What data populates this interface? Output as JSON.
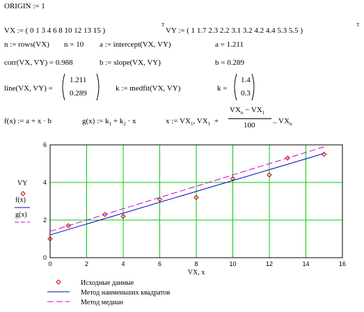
{
  "worksheet": {
    "origin": "ORIGIN := 1",
    "vx_def": "VX := ( 0  1  3  4  6  8  10  12  13  15 )",
    "vx_sup": "T",
    "vy_def": "VY := ( 1  1.7  2.3  2.2  3.1  3.2  4.2  4.4  5.3  5.5 )",
    "vy_sup": "T",
    "n_def": "n := rows(VX)",
    "n_val": "n = 10",
    "a_def": "a := intercept(VX, VY)",
    "a_val": "a = 1.211",
    "corr": "corr(VX, VY) = 0.988",
    "b_def": "b := slope(VX, VY)",
    "b_val": "b = 0.289",
    "line_lhs": "line(VX, VY) =",
    "line_v1": "1.211",
    "line_v2": "0.289",
    "k_def": "k := medfit(VX, VY)",
    "k_lhs": "k =",
    "k_v1": "1.4",
    "k_v2": "0.3",
    "fx_def": "f(x) := a + x · b",
    "gx_pre": "g(x) := k",
    "gx_s1": "1",
    "gx_mid": " + k",
    "gx_s2": "2",
    "gx_post": " · x",
    "x_pre": "x := VX",
    "x_s1": "1",
    "x_mid": ", VX",
    "x_s2": "1",
    "x_plus": "+",
    "frac_num_a": "VX",
    "frac_num_as": "n",
    "frac_num_b": " − VX",
    "frac_num_bs": "1",
    "frac_den": "100",
    "x_tail": " .. VX",
    "x_tail_s": "n"
  },
  "chart_data": {
    "type": "scatter",
    "xlabel": "VX, x",
    "ylabel_lines": [
      "VY",
      "f(x)",
      "g(x)"
    ],
    "xlim": [
      0,
      16
    ],
    "ylim": [
      0,
      6
    ],
    "xticks": [
      0,
      2,
      4,
      6,
      8,
      10,
      12,
      14,
      16
    ],
    "yticks": [
      0,
      2,
      4,
      6
    ],
    "grid": true,
    "grid_color": "#00cc00",
    "legend_position": "bottom-left",
    "series": [
      {
        "name": "Исходные данные",
        "kind": "points",
        "marker": "diamond",
        "color": "#cc0000",
        "x": [
          0,
          1,
          3,
          4,
          6,
          8,
          10,
          12,
          13,
          15
        ],
        "y": [
          1,
          1.7,
          2.3,
          2.2,
          3.1,
          3.2,
          4.2,
          4.4,
          5.3,
          5.5
        ]
      },
      {
        "name": "Метод наименьших квадратов",
        "kind": "line",
        "color": "#0000cc",
        "dash": false,
        "intercept": 1.211,
        "slope": 0.289
      },
      {
        "name": "Метод медиан",
        "kind": "line",
        "color": "#cc00cc",
        "dash": true,
        "intercept": 1.4,
        "slope": 0.3
      }
    ]
  }
}
